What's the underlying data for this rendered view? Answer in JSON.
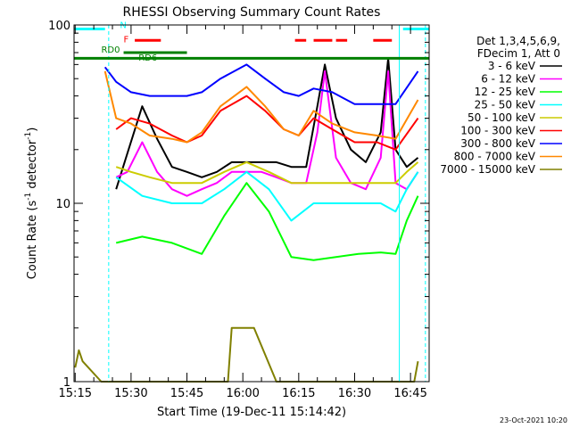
{
  "chart_data": {
    "type": "line",
    "title": "RHESSI Observing Summary Count Rates",
    "xlabel": "Start Time (19-Dec-11 15:14:42)",
    "ylabel": "Count Rate (s",
    "ylabel_sup": "-1",
    "ylabel_tail": " detector",
    "ylabel_close": ")",
    "yscale": "log",
    "ylim": [
      1,
      100
    ],
    "xlim": [
      "15:14:42",
      "16:50:00"
    ],
    "x_ticks": [
      "15:15",
      "15:30",
      "15:45",
      "16:00",
      "16:15",
      "16:30",
      "16:45"
    ],
    "y_ticks": [
      "1",
      "10",
      "100"
    ],
    "legend_header": [
      "Det 1,3,4,5,6,9,",
      "FDecim 1, Att 0"
    ],
    "series": [
      {
        "name": "3 - 6 keV",
        "color": "#000000",
        "times": [
          "15:26",
          "15:29",
          "15:33",
          "15:37",
          "15:41",
          "15:45",
          "15:49",
          "15:53",
          "15:57",
          "16:01",
          "16:05",
          "16:09",
          "16:13",
          "16:17",
          "16:20",
          "16:22",
          "16:25",
          "16:29",
          "16:33",
          "16:37",
          "16:39",
          "16:41",
          "16:44",
          "16:47"
        ],
        "values": [
          12,
          19,
          35,
          23,
          16,
          15,
          14,
          15,
          17,
          17,
          17,
          17,
          16,
          16,
          35,
          60,
          30,
          20,
          17,
          25,
          65,
          20,
          16,
          18
        ]
      },
      {
        "name": "6 - 12 keV",
        "color": "#ff00ff",
        "times": [
          "15:26",
          "15:29",
          "15:33",
          "15:37",
          "15:41",
          "15:45",
          "15:49",
          "15:53",
          "15:57",
          "16:01",
          "16:05",
          "16:09",
          "16:13",
          "16:17",
          "16:20",
          "16:22",
          "16:25",
          "16:29",
          "16:33",
          "16:37",
          "16:39",
          "16:41",
          "16:44",
          "16:47"
        ],
        "values": [
          14,
          15,
          22,
          15,
          12,
          11,
          12,
          13,
          15,
          15,
          15,
          14,
          13,
          13,
          25,
          55,
          18,
          13,
          12,
          18,
          55,
          13,
          12,
          15
        ]
      },
      {
        "name": "12 - 25 keV",
        "color": "#00ff00",
        "times": [
          "15:26",
          "15:33",
          "15:41",
          "15:49",
          "15:55",
          "16:01",
          "16:07",
          "16:13",
          "16:19",
          "16:25",
          "16:31",
          "16:37",
          "16:41",
          "16:44",
          "16:47"
        ],
        "values": [
          6,
          6.5,
          6,
          5.2,
          8.5,
          13,
          9,
          5,
          4.8,
          5,
          5.2,
          5.3,
          5.2,
          8,
          11
        ]
      },
      {
        "name": "25 - 50 keV",
        "color": "#00ffff",
        "times": [
          "15:26",
          "15:33",
          "15:41",
          "15:49",
          "15:55",
          "16:01",
          "16:07",
          "16:13",
          "16:19",
          "16:25",
          "16:31",
          "16:37",
          "16:41",
          "16:44",
          "16:47"
        ],
        "values": [
          14,
          11,
          10,
          10,
          12,
          15,
          12,
          8,
          10,
          10,
          10,
          10,
          9,
          12,
          15
        ]
      },
      {
        "name": "50 - 100 keV",
        "color": "#cccc00",
        "times": [
          "15:26",
          "15:30",
          "15:35",
          "15:41",
          "15:49",
          "15:55",
          "16:01",
          "16:07",
          "16:13",
          "16:19",
          "16:25",
          "16:31",
          "16:37",
          "16:41",
          "16:44",
          "16:47"
        ],
        "values": [
          16,
          15,
          14,
          13,
          13,
          15,
          17,
          15,
          13,
          13,
          13,
          13,
          13,
          13,
          15,
          17
        ]
      },
      {
        "name": "100 - 300 keV",
        "color": "#ff0000",
        "times": [
          "15:26",
          "15:30",
          "15:35",
          "15:41",
          "15:45",
          "15:49",
          "15:54",
          "16:01",
          "16:06",
          "16:11",
          "16:15",
          "16:19",
          "16:24",
          "16:30",
          "16:36",
          "16:41",
          "16:47"
        ],
        "values": [
          26,
          30,
          28,
          24,
          22,
          24,
          33,
          40,
          33,
          26,
          24,
          30,
          26,
          22,
          22,
          20,
          30
        ]
      },
      {
        "name": "300 - 800 keV",
        "color": "#0000ff",
        "times": [
          "15:23",
          "15:26",
          "15:30",
          "15:35",
          "15:41",
          "15:45",
          "15:49",
          "15:54",
          "16:01",
          "16:06",
          "16:11",
          "16:15",
          "16:19",
          "16:24",
          "16:30",
          "16:36",
          "16:41",
          "16:47"
        ],
        "values": [
          58,
          48,
          42,
          40,
          40,
          40,
          42,
          50,
          60,
          50,
          42,
          40,
          44,
          42,
          36,
          36,
          36,
          55
        ]
      },
      {
        "name": "800 - 7000 keV",
        "color": "#ff8800",
        "times": [
          "15:23",
          "15:26",
          "15:30",
          "15:35",
          "15:41",
          "15:45",
          "15:49",
          "15:54",
          "16:01",
          "16:06",
          "16:11",
          "16:15",
          "16:19",
          "16:24",
          "16:30",
          "16:36",
          "16:41",
          "16:47"
        ],
        "values": [
          55,
          30,
          28,
          24,
          23,
          22,
          25,
          35,
          45,
          35,
          26,
          24,
          33,
          28,
          25,
          24,
          23,
          38
        ]
      },
      {
        "name": "7000 - 15000 keV",
        "color": "#808000",
        "times": [
          "15:15",
          "15:16",
          "15:17",
          "15:22",
          "15:26",
          "15:30",
          "15:37",
          "15:41",
          "15:49",
          "15:56",
          "15:57",
          "16:00",
          "16:03",
          "16:09",
          "16:14",
          "16:20",
          "16:30",
          "16:40",
          "16:46",
          "16:47"
        ],
        "values": [
          1.2,
          1.5,
          1.3,
          1,
          1,
          1,
          1,
          1,
          1,
          1,
          2,
          2,
          2,
          1,
          1,
          1,
          1,
          1,
          1,
          1.3
        ]
      }
    ],
    "annotations": [
      {
        "label": "N",
        "color": "#00ffff",
        "time": "15:27",
        "value": 96
      },
      {
        "label": "F",
        "color": "#ff0000",
        "time": "15:28",
        "value": 80
      },
      {
        "label": "RD0",
        "color": "#008000",
        "time": "15:22",
        "value": 70
      },
      {
        "label": "RD6",
        "color": "#008000",
        "time": "15:32",
        "value": 63
      }
    ],
    "state_bars": [
      {
        "flag": "N",
        "color": "#00ffff",
        "value": 95,
        "spans": [
          [
            "15:14:42",
            "15:23"
          ],
          [
            "16:43",
            "16:50"
          ]
        ]
      },
      {
        "flag": "F",
        "color": "#ff0000",
        "value": 82,
        "spans": [
          [
            "15:31",
            "15:38"
          ],
          [
            "16:14",
            "16:17"
          ],
          [
            "16:19",
            "16:24"
          ],
          [
            "16:25",
            "16:28"
          ],
          [
            "16:35",
            "16:40"
          ]
        ]
      },
      {
        "flag": "RD",
        "color": "#008000",
        "value": 65,
        "spans": [
          [
            "15:14:42",
            "16:50"
          ]
        ]
      },
      {
        "flag": "RD6",
        "color": "#008000",
        "value": 70,
        "spans": [
          [
            "15:28",
            "15:45"
          ]
        ]
      }
    ],
    "night_markers": {
      "solid": [
        "15:14:42",
        "16:42"
      ],
      "dashed": [
        "15:24",
        "16:49"
      ],
      "color": "#00ffff"
    },
    "grid": false
  },
  "footer": {
    "timestamp": "23-Oct-2021 10:20"
  }
}
